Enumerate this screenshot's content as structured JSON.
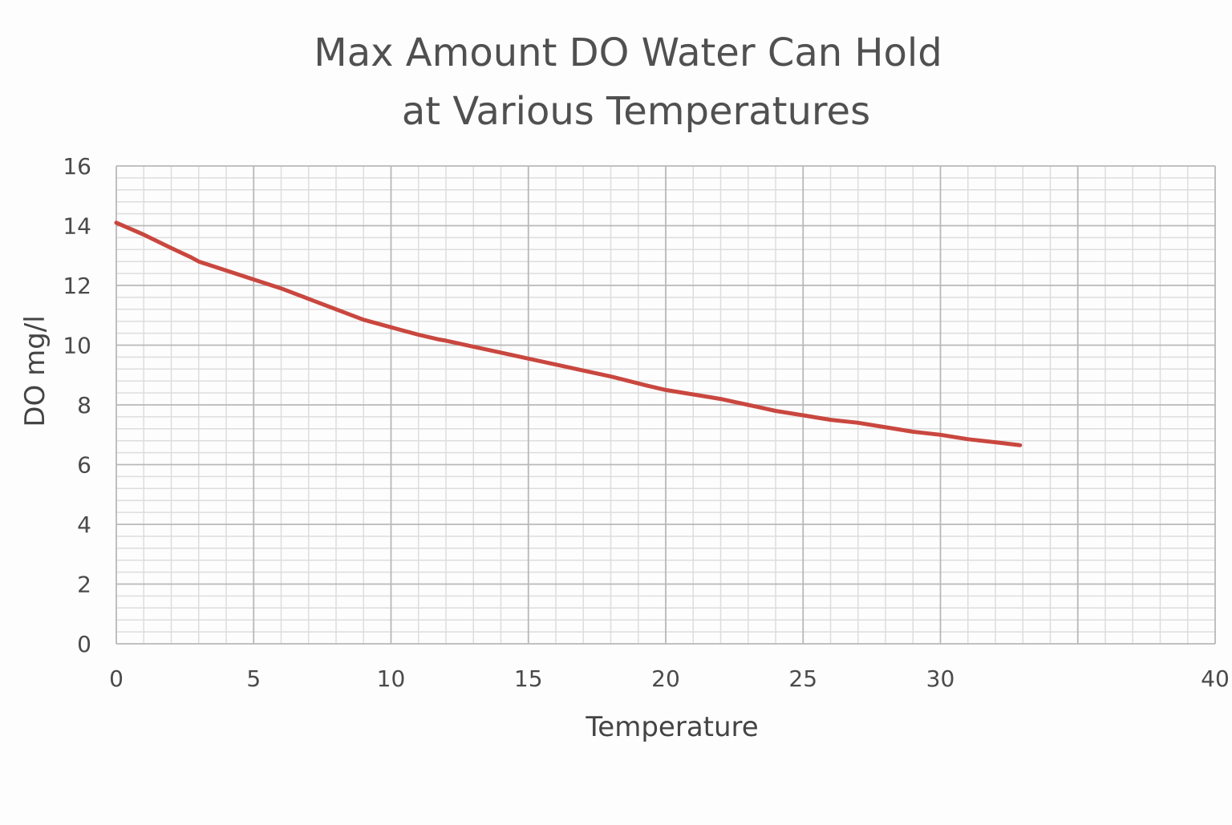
{
  "colors": {
    "background": "#fdfdfd",
    "series": "#c9473f",
    "major_grid": "#b8b8b8",
    "minor_grid": "#dddddd",
    "text": "#4a4a4a"
  },
  "chart_data": {
    "type": "line",
    "title": "Max Amount DO Water Can Hold at Various Temperatures",
    "title_lines": [
      "Max Amount DO Water Can Hold",
      "at Various Temperatures"
    ],
    "xlabel": "Temperature",
    "ylabel": "DO mg/l",
    "xlim": [
      0,
      40
    ],
    "ylim": [
      0,
      16
    ],
    "xticks": [
      0,
      5,
      10,
      15,
      20,
      25,
      30,
      40
    ],
    "xtick_labels": [
      "0",
      "5",
      "10",
      "15",
      "20",
      "25",
      "30",
      "40"
    ],
    "xgrid_major": [
      0,
      5,
      10,
      15,
      20,
      25,
      30,
      35,
      40
    ],
    "yticks": [
      0,
      2,
      4,
      6,
      8,
      10,
      12,
      14,
      16
    ],
    "ytick_labels": [
      "0",
      "2",
      "4",
      "6",
      "8",
      "10",
      "12",
      "14",
      "16"
    ],
    "grid": true,
    "legend": "none",
    "series": [
      {
        "name": "DO mg/l",
        "x": [
          0,
          1,
          2,
          2.7,
          3,
          4,
          5,
          6,
          7,
          8,
          9,
          10,
          11,
          11.7,
          12,
          13,
          14,
          15,
          16,
          17,
          18,
          19,
          19.3,
          20,
          21,
          22,
          22.5,
          23,
          23.5,
          24,
          25,
          26,
          27,
          28,
          29,
          30,
          31,
          32,
          32.9
        ],
        "values": [
          14.1,
          13.7,
          13.25,
          12.95,
          12.8,
          12.5,
          12.2,
          11.9,
          11.55,
          11.2,
          10.85,
          10.6,
          10.35,
          10.2,
          10.15,
          9.95,
          9.75,
          9.55,
          9.35,
          9.15,
          8.95,
          8.72,
          8.65,
          8.5,
          8.35,
          8.2,
          8.1,
          8.0,
          7.9,
          7.8,
          7.65,
          7.5,
          7.4,
          7.25,
          7.1,
          7.0,
          6.85,
          6.75,
          6.65
        ]
      }
    ]
  }
}
